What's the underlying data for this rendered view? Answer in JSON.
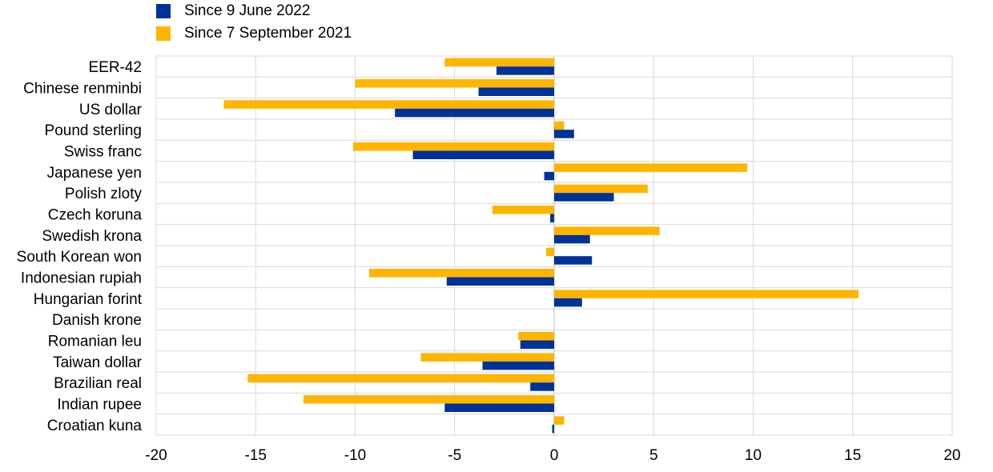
{
  "chart_data": {
    "type": "bar",
    "orientation": "horizontal",
    "categories": [
      "EER-42",
      "Chinese renminbi",
      "US dollar",
      "Pound sterling",
      "Swiss franc",
      "Japanese yen",
      "Polish zloty",
      "Czech koruna",
      "Swedish krona",
      "South Korean won",
      "Indonesian rupiah",
      "Hungarian forint",
      "Danish krone",
      "Romanian leu",
      "Taiwan dollar",
      "Brazilian real",
      "Indian rupee",
      "Croatian kuna"
    ],
    "series": [
      {
        "name": "Since 9 June 2022",
        "color": "#003299",
        "values": [
          -2.9,
          -3.8,
          -8.0,
          1.0,
          -7.1,
          -0.5,
          3.0,
          -0.2,
          1.8,
          1.9,
          -5.4,
          1.4,
          0.0,
          -1.7,
          -3.6,
          -1.2,
          -5.5,
          -0.1
        ]
      },
      {
        "name": "Since 7 September 2021",
        "color": "#FFB400",
        "values": [
          -5.5,
          -10.0,
          -16.6,
          0.5,
          -10.1,
          9.7,
          4.7,
          -3.1,
          5.3,
          -0.4,
          -9.3,
          15.3,
          0.0,
          -1.8,
          -6.7,
          -15.4,
          -12.6,
          0.5
        ]
      }
    ],
    "xlim": [
      -20,
      20
    ],
    "xticks": [
      "-20",
      "-15",
      "-10",
      "-5",
      "0",
      "5",
      "10",
      "15",
      "20"
    ],
    "grid": true,
    "legend_position": "top-left"
  }
}
